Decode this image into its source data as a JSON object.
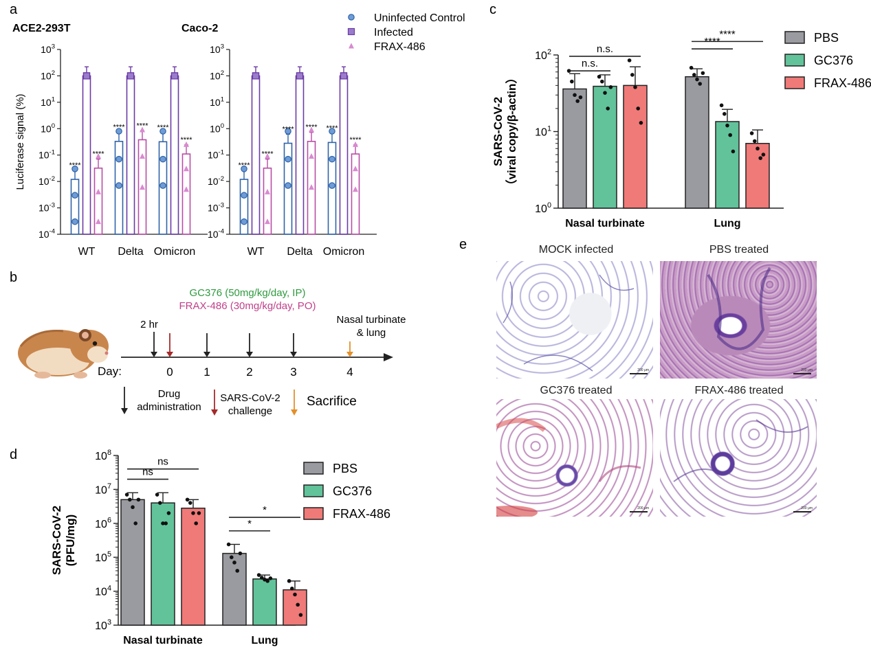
{
  "panel_labels": {
    "a": "a",
    "b": "b",
    "c": "c",
    "d": "d",
    "e": "e"
  },
  "colors": {
    "pbs": "#9a9ba0",
    "gc376": "#62c39b",
    "frax": "#ef7a78",
    "uninfected": "#2f63a8",
    "infected": "#6b3aa6",
    "frax_pink": "#b84ca6",
    "gc376_text": "#2e9a3e",
    "frax_text": "#c0408a",
    "arrow_drug": "#222222",
    "arrow_challenge": "#a52a2a",
    "arrow_sacrifice": "#e3902a"
  },
  "panel_a": {
    "legend": [
      "Uninfected Control",
      "Infected",
      "FRAX-486"
    ],
    "ylabel": "Luciferase signal (%)",
    "ytick_labels": [
      "10^-4",
      "10^-3",
      "10^-2",
      "10^-1",
      "10^0",
      "10^1",
      "10^2",
      "10^3"
    ]
  },
  "panel_b": {
    "gc376_dose": "GC376 (50mg/kg/day, IP)",
    "frax_dose": "FRAX-486 (30mg/kg/day, PO)",
    "pre_label": "2 hr",
    "end_label_1": "Nasal turbinate",
    "end_label_2": "& lung",
    "day_label": "Day:",
    "days": [
      "0",
      "1",
      "2",
      "3",
      "4"
    ],
    "legend_drug_1": "Drug",
    "legend_drug_2": "administration",
    "legend_challenge_1": "SARS-CoV-2",
    "legend_challenge_2": "challenge",
    "legend_sacrifice": "Sacrifice",
    "icon": "hamster-icon"
  },
  "panel_e": {
    "images": [
      {
        "title": "MOCK infected",
        "scale": "200 μm"
      },
      {
        "title": "PBS treated",
        "scale": "200 μm"
      },
      {
        "title": "GC376 treated",
        "scale": "200 μm"
      },
      {
        "title": "FRAX-486 treated",
        "scale": "200 μm"
      }
    ]
  },
  "chart_data": [
    {
      "id": "a-ace2",
      "type": "bar",
      "title": "ACE2-293T",
      "ylabel": "Luciferase signal (%)",
      "yscale": "log",
      "ylim": [
        0.0001,
        1000
      ],
      "categories": [
        "WT",
        "Delta",
        "Omicron"
      ],
      "series": [
        {
          "name": "Uninfected Control",
          "values": [
            0.012,
            0.33,
            0.32
          ],
          "points": [
            [
              0.03,
              0.003,
              0.0003
            ],
            [
              0.8,
              0.07,
              0.007
            ],
            [
              0.8,
              0.07,
              0.007
            ]
          ],
          "sig": [
            "****",
            "****",
            "****"
          ]
        },
        {
          "name": "Infected",
          "values": [
            100,
            100,
            100
          ],
          "points": [
            [
              100,
              100,
              100
            ],
            [
              100,
              100,
              100
            ],
            [
              100,
              100,
              100
            ]
          ],
          "sig": [
            "",
            "",
            ""
          ]
        },
        {
          "name": "FRAX-486",
          "values": [
            0.032,
            0.38,
            0.11
          ],
          "points": [
            [
              0.09,
              0.004,
              0.0003
            ],
            [
              0.9,
              0.09,
              0.006
            ],
            [
              0.25,
              0.03,
              0.005
            ]
          ],
          "sig": [
            "****",
            "****",
            "****"
          ]
        }
      ]
    },
    {
      "id": "a-caco2",
      "type": "bar",
      "title": "Caco-2",
      "ylabel": "",
      "yscale": "log",
      "ylim": [
        0.0001,
        1000
      ],
      "categories": [
        "WT",
        "Delta",
        "Omicron"
      ],
      "series": [
        {
          "name": "Uninfected Control",
          "values": [
            0.012,
            0.28,
            0.3
          ],
          "points": [
            [
              0.03,
              0.003,
              0.0003
            ],
            [
              0.8,
              0.07,
              0.007
            ],
            [
              0.8,
              0.07,
              0.007
            ]
          ],
          "sig": [
            "****",
            "****",
            "****"
          ]
        },
        {
          "name": "Infected",
          "values": [
            100,
            100,
            100
          ],
          "points": [
            [
              100,
              100,
              100
            ],
            [
              100,
              100,
              100
            ],
            [
              100,
              100,
              100
            ]
          ],
          "sig": [
            "",
            "",
            ""
          ]
        },
        {
          "name": "FRAX-486",
          "values": [
            0.032,
            0.33,
            0.11
          ],
          "points": [
            [
              0.09,
              0.004,
              0.0003
            ],
            [
              0.9,
              0.09,
              0.006
            ],
            [
              0.25,
              0.03,
              0.005
            ]
          ],
          "sig": [
            "****",
            "****",
            "****"
          ]
        }
      ]
    },
    {
      "id": "c",
      "type": "bar",
      "title": "",
      "ylabel": "SARS-CoV-2",
      "ylabel2": "（viral copy/β-actin）",
      "yscale": "log",
      "ylim": [
        1,
        100
      ],
      "categories": [
        "Nasal turbinate",
        "Lung"
      ],
      "legend": [
        "PBS",
        "GC376",
        "FRAX-486"
      ],
      "series": [
        {
          "name": "PBS",
          "values": [
            36,
            52
          ],
          "err": [
            57,
            66
          ],
          "points": [
            [
              62,
              45,
              30,
              25,
              28
            ],
            [
              68,
              55,
              48,
              42,
              58
            ]
          ]
        },
        {
          "name": "GC376",
          "values": [
            39,
            13.5
          ],
          "err": [
            55,
            19.5
          ],
          "points": [
            [
              52,
              45,
              32,
              20,
              38
            ],
            [
              22,
              17,
              12,
              9,
              5.5
            ]
          ]
        },
        {
          "name": "FRAX-486",
          "values": [
            40,
            7
          ],
          "err": [
            70,
            10.5
          ],
          "points": [
            [
              85,
              55,
              38,
              20,
              13
            ],
            [
              9.5,
              7.5,
              6,
              4.5,
              5
            ]
          ]
        }
      ],
      "brackets": [
        {
          "group": 0,
          "from": 0,
          "to": 1,
          "level": 62,
          "text": "n.s."
        },
        {
          "group": 0,
          "from": 0,
          "to": 2,
          "level": 96,
          "text": "n.s."
        },
        {
          "group": 1,
          "from": 0,
          "to": 1,
          "level": 120,
          "text": "****"
        },
        {
          "group": 1,
          "from": 0,
          "to": 2,
          "level": 150,
          "text": "****"
        }
      ]
    },
    {
      "id": "d",
      "type": "bar",
      "title": "",
      "ylabel": "SARS-CoV-2",
      "ylabel2": "(PFU/mg)",
      "yscale": "log",
      "ylim": [
        1000,
        100000000
      ],
      "categories": [
        "Nasal turbinate",
        "Lung"
      ],
      "legend": [
        "PBS",
        "GC376",
        "FRAX-486"
      ],
      "series": [
        {
          "name": "PBS",
          "values": [
            5000000,
            130000
          ],
          "err": [
            8000000,
            240000
          ],
          "points": [
            [
              7000000,
              5000000,
              3000000,
              1000000,
              5000000
            ],
            [
              240000,
              100000,
              70000,
              40000,
              130000
            ]
          ]
        },
        {
          "name": "GC376",
          "values": [
            4000000,
            23000
          ],
          "err": [
            8000000,
            30000
          ],
          "points": [
            [
              7000000,
              4000000,
              1000000,
              1000000,
              2000000
            ],
            [
              30000,
              25000,
              22000,
              20000,
              24000
            ]
          ]
        },
        {
          "name": "FRAX-486",
          "values": [
            2800000,
            11000
          ],
          "err": [
            5000000,
            20000
          ],
          "points": [
            [
              5000000,
              4000000,
              2000000,
              1000000,
              2000000
            ],
            [
              20000,
              12000,
              8000,
              4000,
              2000
            ]
          ]
        }
      ],
      "brackets": [
        {
          "group": 0,
          "from": 0,
          "to": 1,
          "level": 20000000,
          "text": "ns"
        },
        {
          "group": 0,
          "from": 0,
          "to": 2,
          "level": 40000000,
          "text": "ns"
        },
        {
          "group": 1,
          "from": 0,
          "to": 1,
          "level": 600000,
          "text": "*"
        },
        {
          "group": 1,
          "from": 0,
          "to": 2,
          "level": 1500000,
          "text": "*"
        }
      ]
    }
  ]
}
